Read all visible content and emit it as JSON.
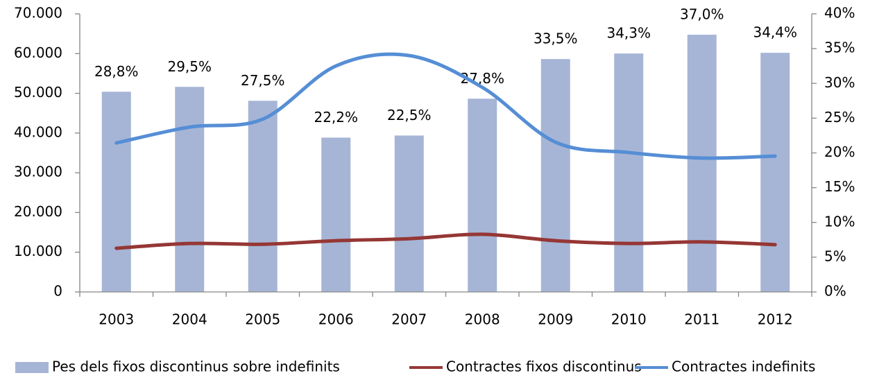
{
  "chart_data": {
    "type": "bar_line",
    "categories": [
      "2003",
      "2004",
      "2005",
      "2006",
      "2007",
      "2008",
      "2009",
      "2010",
      "2011",
      "2012"
    ],
    "series": [
      {
        "name": "Pes dels fixos discontinus sobre indefinits",
        "type": "bar",
        "axis": "y2",
        "color": "#a6b5d6",
        "values": [
          28.8,
          29.5,
          27.5,
          22.2,
          22.5,
          27.8,
          33.5,
          34.3,
          37.0,
          34.4
        ],
        "value_labels": [
          "28,8%",
          "29,5%",
          "27,5%",
          "22,2%",
          "22,5%",
          "27,8%",
          "33,5%",
          "34,3%",
          "37,0%",
          "34,4%"
        ]
      },
      {
        "name": "Contractes fixos discontinus",
        "type": "line",
        "color": "#953735",
        "values": [
          11000,
          12200,
          12000,
          12900,
          13400,
          14500,
          12900,
          12200,
          12600,
          11900
        ]
      },
      {
        "name": "Contractes indefinits",
        "type": "line",
        "color": "#558ed5",
        "values": [
          37500,
          41500,
          43500,
          56900,
          59500,
          51500,
          37700,
          35100,
          33700,
          34200
        ]
      }
    ],
    "ylim": [
      0,
      70000
    ],
    "yticks": [
      0,
      {
        "value": 10000,
        "label": "10.000"
      },
      {
        "value": 20000,
        "label": "20.000"
      },
      {
        "value": 30000,
        "label": "30.000"
      },
      {
        "value": 40000,
        "label": "40.000"
      },
      {
        "value": 50000,
        "label": "50.000"
      },
      {
        "value": 60000,
        "label": "60.000"
      },
      {
        "value": 70000,
        "label": "70.000"
      }
    ],
    "y2lim": [
      0,
      40
    ],
    "y2ticks": [
      {
        "value": 0,
        "label": "0%"
      },
      {
        "value": 5,
        "label": "5%"
      },
      {
        "value": 10,
        "label": "10%"
      },
      {
        "value": 15,
        "label": "15%"
      },
      {
        "value": 20,
        "label": "20%"
      },
      {
        "value": 25,
        "label": "25%"
      },
      {
        "value": 30,
        "label": "30%"
      },
      {
        "value": 35,
        "label": "35%"
      },
      {
        "value": 40,
        "label": "40%"
      }
    ],
    "grid": false,
    "legend": "bottom"
  }
}
